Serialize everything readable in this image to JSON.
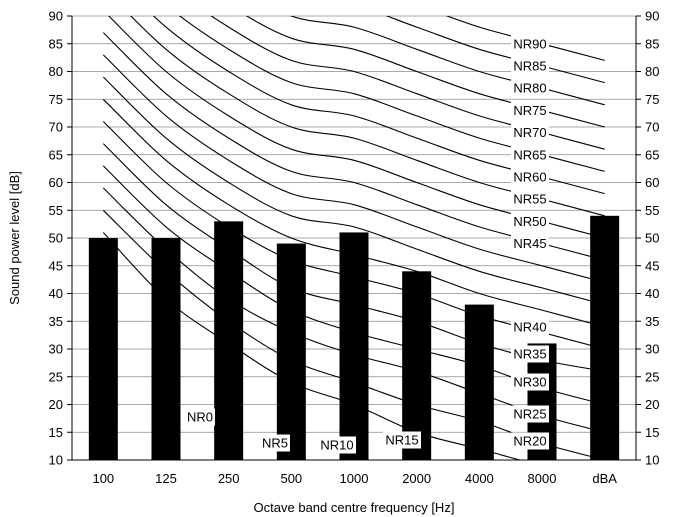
{
  "chart_data": {
    "type": "bar",
    "xlabel": "Octave band centre frequency [Hz]",
    "ylabel": "Sound power level [dB]",
    "ylim": [
      10,
      90
    ],
    "yticks": [
      10,
      15,
      20,
      25,
      30,
      35,
      40,
      45,
      50,
      55,
      60,
      65,
      70,
      75,
      80,
      85,
      90
    ],
    "grid": "horizontal",
    "categories": [
      "100",
      "125",
      "250",
      "500",
      "1000",
      "2000",
      "4000",
      "8000",
      "dBA"
    ],
    "values": [
      50,
      50,
      53,
      49,
      51,
      44,
      38,
      31,
      54
    ],
    "bar_color": "#000000",
    "nr_curves": [
      {
        "name": "NR0",
        "values": [
          51,
          39,
          31,
          24,
          20,
          15,
          12,
          9,
          7
        ]
      },
      {
        "name": "NR5",
        "values": [
          55,
          44,
          35,
          28,
          24,
          20,
          17,
          13,
          10
        ]
      },
      {
        "name": "NR10",
        "values": [
          59,
          48,
          39,
          33,
          29,
          26,
          22,
          18,
          15
        ]
      },
      {
        "name": "NR15",
        "values": [
          63,
          52,
          44,
          37,
          33,
          30,
          27,
          23,
          20
        ]
      },
      {
        "name": "NR20",
        "values": [
          67,
          56,
          48,
          41,
          38,
          35,
          31,
          28,
          26
        ]
      },
      {
        "name": "NR25",
        "values": [
          71,
          60,
          52,
          46,
          43,
          40,
          36,
          33,
          30
        ]
      },
      {
        "name": "NR30",
        "values": [
          75,
          64,
          56,
          50,
          47,
          44,
          40,
          37,
          34
        ]
      },
      {
        "name": "NR35",
        "values": [
          79,
          68,
          60,
          54,
          52,
          48,
          44,
          41,
          38
        ]
      },
      {
        "name": "NR40",
        "values": [
          83,
          72,
          64,
          58,
          56,
          52,
          48,
          45,
          42
        ]
      },
      {
        "name": "NR45",
        "values": [
          87,
          76,
          68,
          62,
          60,
          56,
          52,
          49,
          46
        ]
      },
      {
        "name": "NR50",
        "values": [
          91,
          80,
          72,
          66,
          64,
          60,
          56,
          53,
          50
        ]
      },
      {
        "name": "NR55",
        "values": [
          95,
          84,
          76,
          70,
          68,
          64,
          60,
          57,
          54
        ]
      },
      {
        "name": "NR60",
        "values": [
          99,
          88,
          80,
          74,
          72,
          68,
          64,
          61,
          58
        ]
      },
      {
        "name": "NR65",
        "values": [
          103,
          92,
          84,
          78,
          76,
          72,
          68,
          65,
          62
        ]
      },
      {
        "name": "NR70",
        "values": [
          107,
          96,
          88,
          82,
          80,
          76,
          72,
          69,
          66
        ]
      },
      {
        "name": "NR75",
        "values": [
          111,
          100,
          92,
          86,
          84,
          80,
          76,
          73,
          70
        ]
      },
      {
        "name": "NR80",
        "values": [
          115,
          104,
          96,
          90,
          88,
          84,
          80,
          77,
          74
        ]
      },
      {
        "name": "NR85",
        "values": [
          119,
          108,
          100,
          94,
          92,
          88,
          84,
          81,
          78
        ]
      },
      {
        "name": "NR90",
        "values": [
          123,
          112,
          104,
          98,
          96,
          92,
          88,
          85,
          82
        ]
      }
    ]
  }
}
